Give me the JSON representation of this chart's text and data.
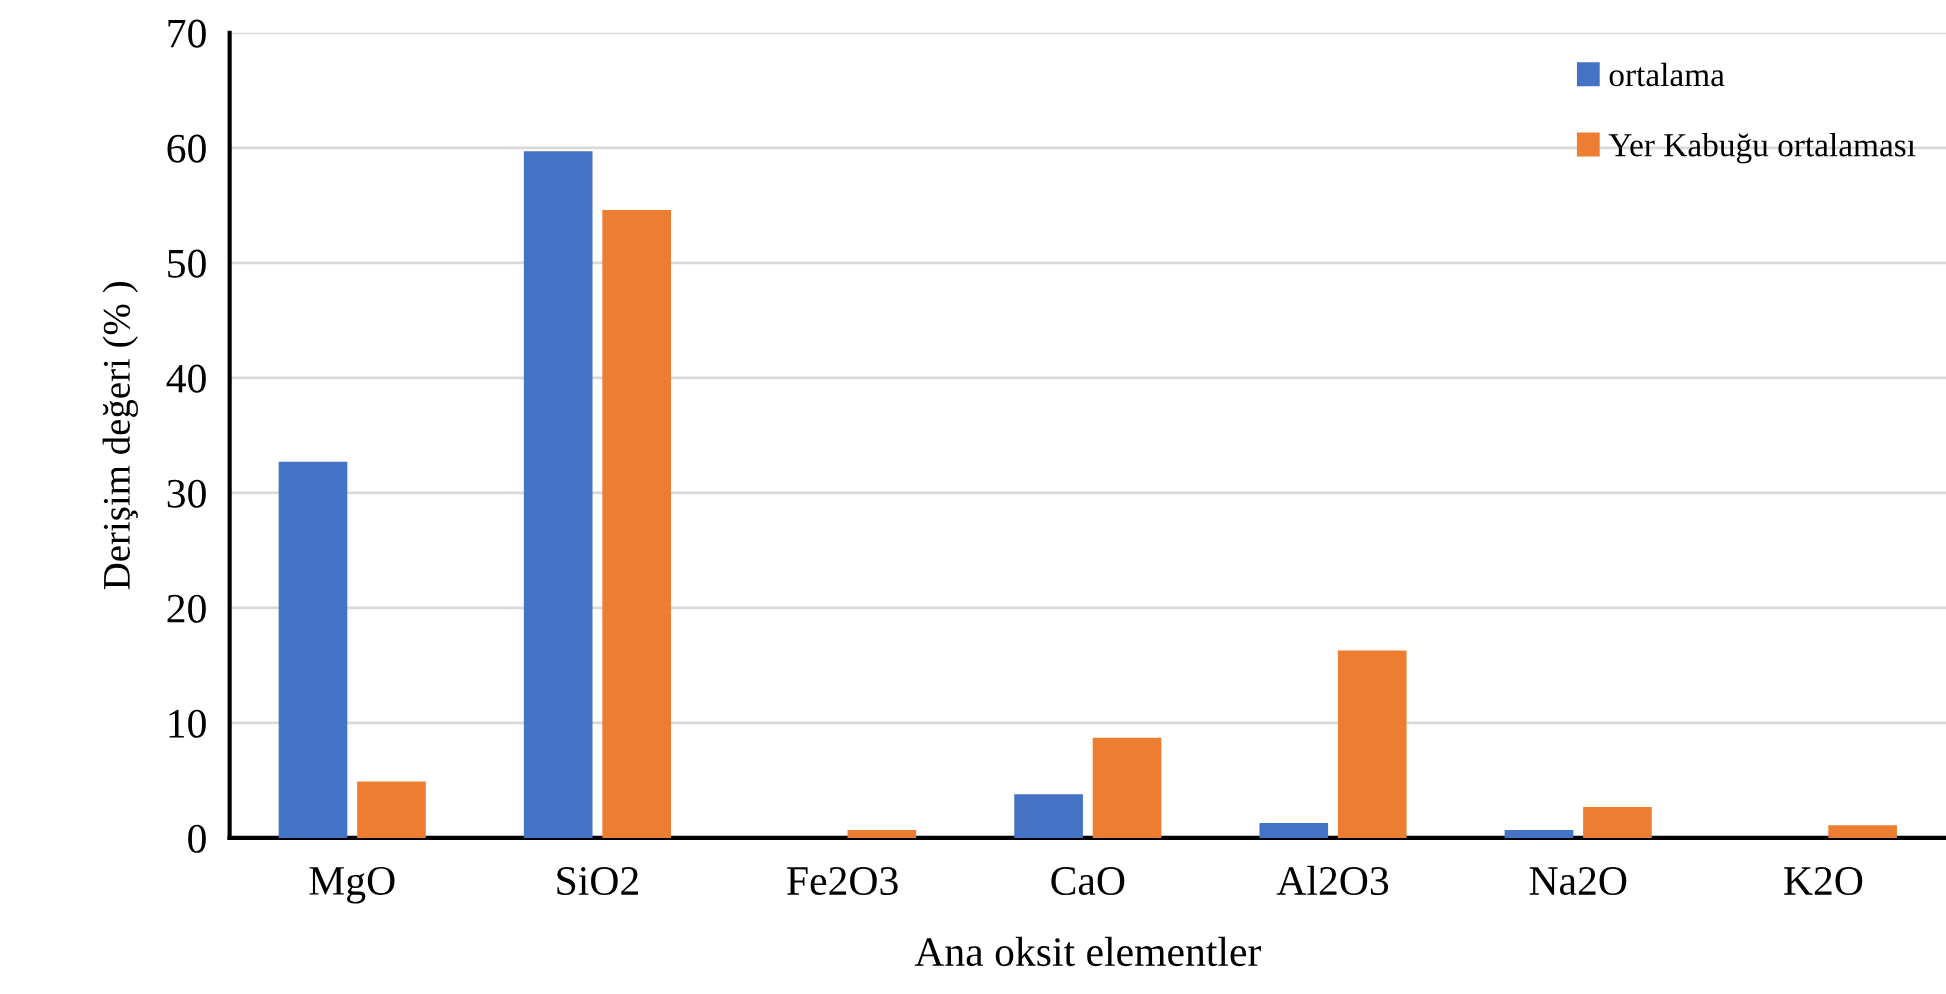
{
  "chart_data": {
    "type": "bar",
    "xlabel": "Ana oksit elementler",
    "ylabel": "Derişim değeri (% )",
    "categories": [
      "MgO",
      "SiO2",
      "Fe2O3",
      "CaO",
      "Al2O3",
      "Na2O",
      "K2O"
    ],
    "series": [
      {
        "name": "ortalama",
        "color": "#4472c4",
        "values": [
          32.7,
          59.7,
          0,
          3.8,
          1.3,
          0.7,
          0
        ]
      },
      {
        "name": "Yer Kabuğu ortalaması",
        "color": "#ed7d31",
        "values": [
          4.9,
          54.6,
          0.7,
          8.7,
          16.3,
          2.7,
          1.1
        ]
      }
    ],
    "ylim": [
      0,
      70
    ],
    "yticks": [
      0,
      10,
      20,
      30,
      40,
      50,
      60,
      70
    ],
    "grid": "y",
    "legend": "top right"
  }
}
